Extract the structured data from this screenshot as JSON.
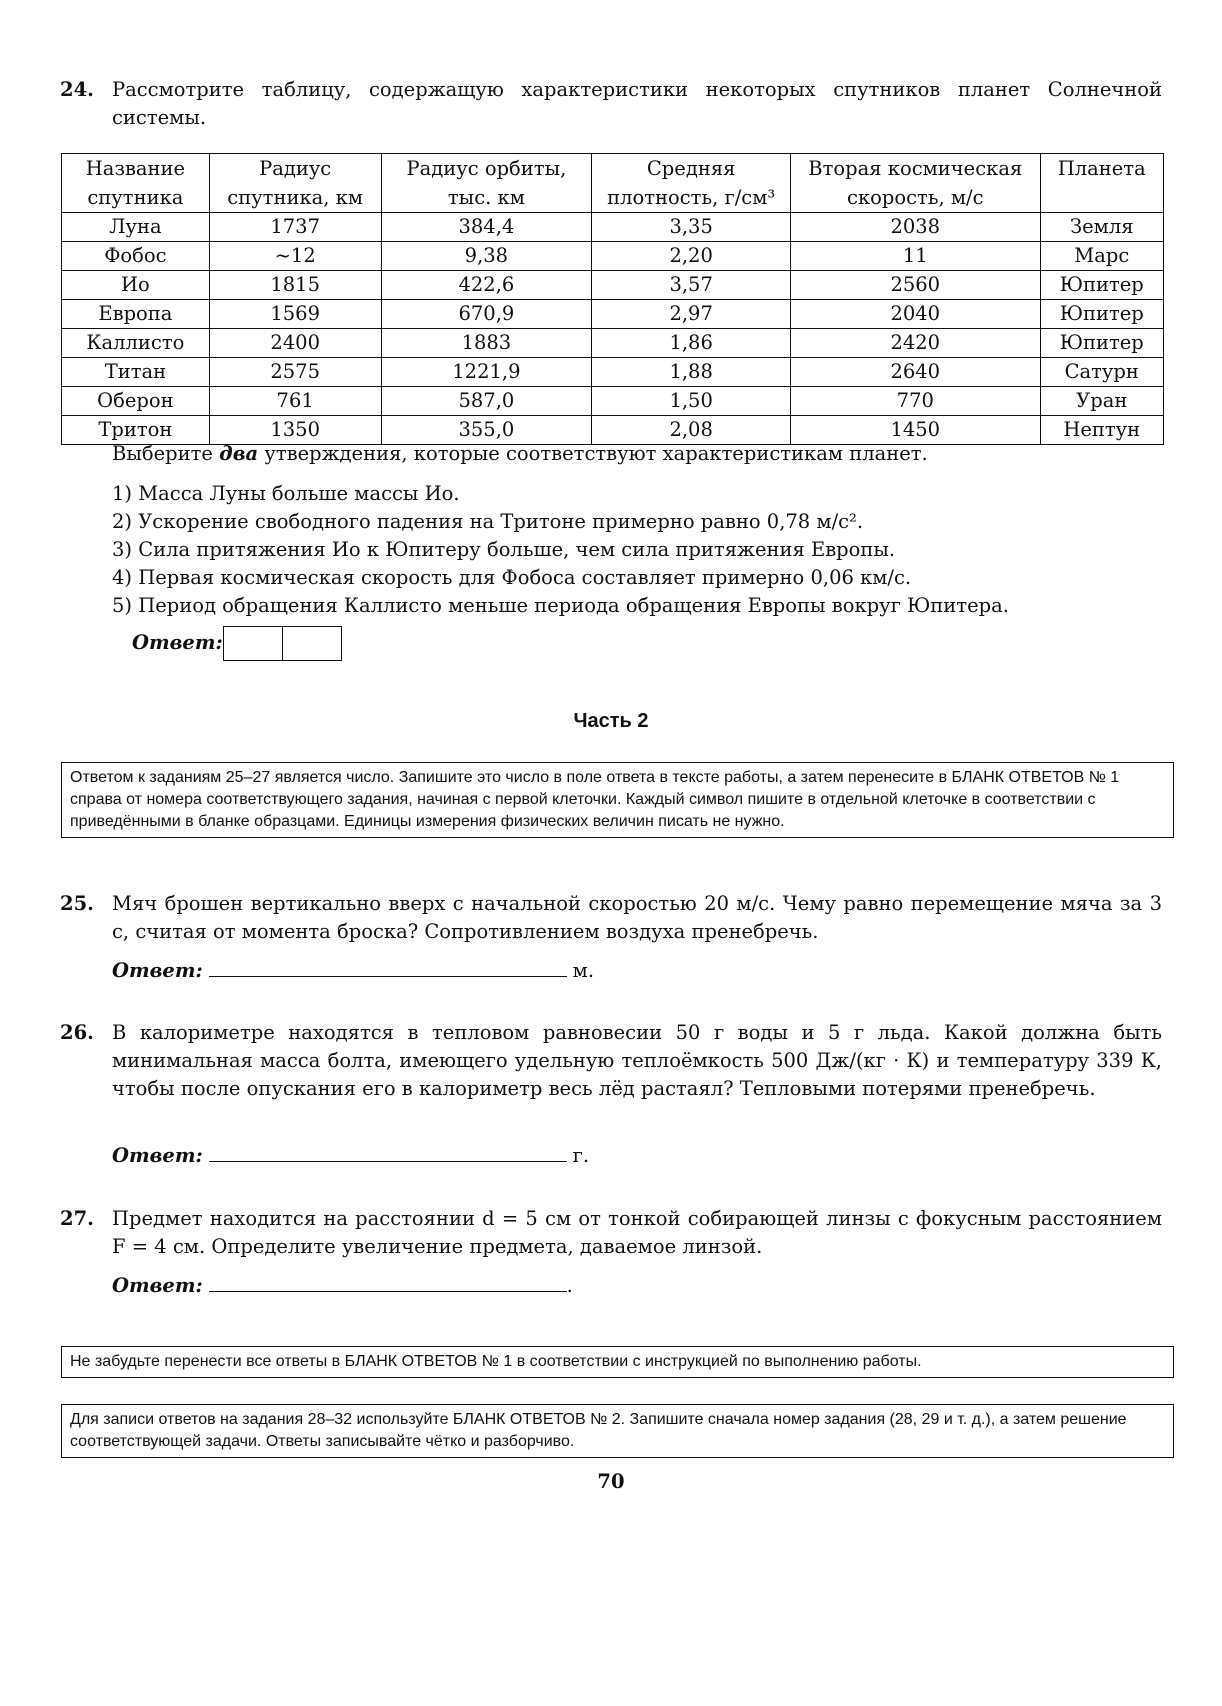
{
  "q24": {
    "number": "24.",
    "text": "Рассмотрите таблицу, содержащую характеристики некоторых спутников планет Солнечной системы.",
    "table": {
      "headers": [
        "Название спутника",
        "Радиус спутника, км",
        "Радиус орбиты, тыс. км",
        "Средняя плотность, г/см³",
        "Вторая космическая скорость, м/с",
        "Планета"
      ],
      "rows": [
        [
          "Луна",
          "1737",
          "384,4",
          "3,35",
          "2038",
          "Земля"
        ],
        [
          "Фобос",
          "~12",
          "9,38",
          "2,20",
          "11",
          "Марс"
        ],
        [
          "Ио",
          "1815",
          "422,6",
          "3,57",
          "2560",
          "Юпитер"
        ],
        [
          "Европа",
          "1569",
          "670,9",
          "2,97",
          "2040",
          "Юпитер"
        ],
        [
          "Каллисто",
          "2400",
          "1883",
          "1,86",
          "2420",
          "Юпитер"
        ],
        [
          "Титан",
          "2575",
          "1221,9",
          "1,88",
          "2640",
          "Сатурн"
        ],
        [
          "Оберон",
          "761",
          "587,0",
          "1,50",
          "770",
          "Уран"
        ],
        [
          "Тритон",
          "1350",
          "355,0",
          "2,08",
          "1450",
          "Нептун"
        ]
      ]
    },
    "prompt_before": "Выберите ",
    "prompt_emph": "два",
    "prompt_after": " утверждения, которые соответствуют характеристикам планет.",
    "options": [
      "1) Масса Луны больше массы Ио.",
      "2) Ускорение свободного падения на Тритоне примерно равно 0,78 м/с².",
      "3) Сила притяжения Ио к Юпитеру больше, чем сила притяжения Европы.",
      "4) Первая космическая скорость для Фобоса составляет примерно 0,06 км/с.",
      "5) Период обращения Каллисто меньше периода обращения Европы вокруг Юпитера."
    ],
    "answer_label": "Ответ:"
  },
  "part2": {
    "title": "Часть 2",
    "instructions": "Ответом к заданиям 25–27 является число. Запишите это число в поле ответа в тексте работы, а затем перенесите в БЛАНК ОТВЕТОВ № 1 справа от номера соответствующего задания, начиная с первой клеточки. Каждый символ пишите в отдельной клеточке в соответствии с приведёнными в бланке образцами. Единицы измерения физических величин писать не нужно."
  },
  "q25": {
    "number": "25.",
    "text": "Мяч брошен вертикально вверх с начальной скоростью 20 м/с. Чему равно перемещение мяча за 3 с, считая от момента броска? Сопротивлением воздуха пренебречь.",
    "answer_label": "Ответ:",
    "unit": "м."
  },
  "q26": {
    "number": "26.",
    "text": "В калориметре находятся в тепловом равновесии 50 г воды и 5 г льда. Какой должна быть минимальная масса болта, имеющего удельную теплоёмкость 500 Дж/(кг · К) и температуру 339 К, чтобы после опускания его в калориметр весь лёд растаял? Тепловыми потерями пренебречь.",
    "answer_label": "Ответ:",
    "unit": "г."
  },
  "q27": {
    "number": "27.",
    "text": "Предмет находится на расстоянии d = 5 см от тонкой собирающей линзы с фокусным расстоянием F = 4 см. Определите увеличение предмета, даваемое линзой.",
    "answer_label": "Ответ:",
    "unit": "."
  },
  "notes": {
    "transfer": "Не забудьте перенести все ответы в БЛАНК ОТВЕТОВ № 1 в соответствии с инструкцией по выполнению работы.",
    "form2": "Для записи ответов на задания 28–32 используйте БЛАНК ОТВЕТОВ № 2. Запишите сначала номер задания (28, 29 и т. д.), а затем решение соответствующей задачи. Ответы записывайте чётко и разборчиво."
  },
  "page_number": "70"
}
